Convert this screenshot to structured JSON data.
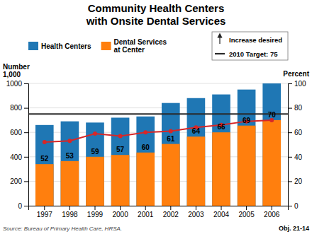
{
  "chart_data": {
    "type": "bar",
    "title": "Community Health Centers\nwith Onsite Dental Services",
    "categories": [
      "1997",
      "1998",
      "1999",
      "2000",
      "2001",
      "2002",
      "2003",
      "2004",
      "2005",
      "2006"
    ],
    "series": [
      {
        "name": "Health Centers",
        "type": "bar",
        "color": "#1f77b4",
        "values": [
          660,
          690,
          680,
          720,
          730,
          840,
          880,
          910,
          950,
          1000
        ]
      },
      {
        "name": "Dental Services\nat Center",
        "type": "bar",
        "color": "#ff7f0e",
        "values": [
          340,
          365,
          400,
          415,
          435,
          505,
          565,
          600,
          655,
          700
        ]
      },
      {
        "type": "line",
        "axis": "y2",
        "color": "#d62728",
        "marker": "circle",
        "data_labels": true,
        "values": [
          52,
          53,
          59,
          57,
          60,
          61,
          64,
          66,
          69,
          70
        ]
      }
    ],
    "stacked": false,
    "ylim": [
      0,
      1000
    ],
    "yticks": [
      0,
      200,
      400,
      600,
      800,
      1000
    ],
    "y2lim": [
      0,
      100
    ],
    "y2ticks": [
      0,
      20,
      40,
      60,
      80,
      100
    ],
    "grid": true,
    "legend": "top",
    "ylabel": [
      "Number",
      "1,000"
    ],
    "y2label": "Percent",
    "target": {
      "value": 75,
      "label": "2010 Target: 75",
      "axis": "y2",
      "color": "#2a2a2a"
    },
    "annotation": "Increase desired",
    "source": "Source: Bureau of Primary Health Care, HRSA.",
    "note": "Obj. 21-14"
  }
}
